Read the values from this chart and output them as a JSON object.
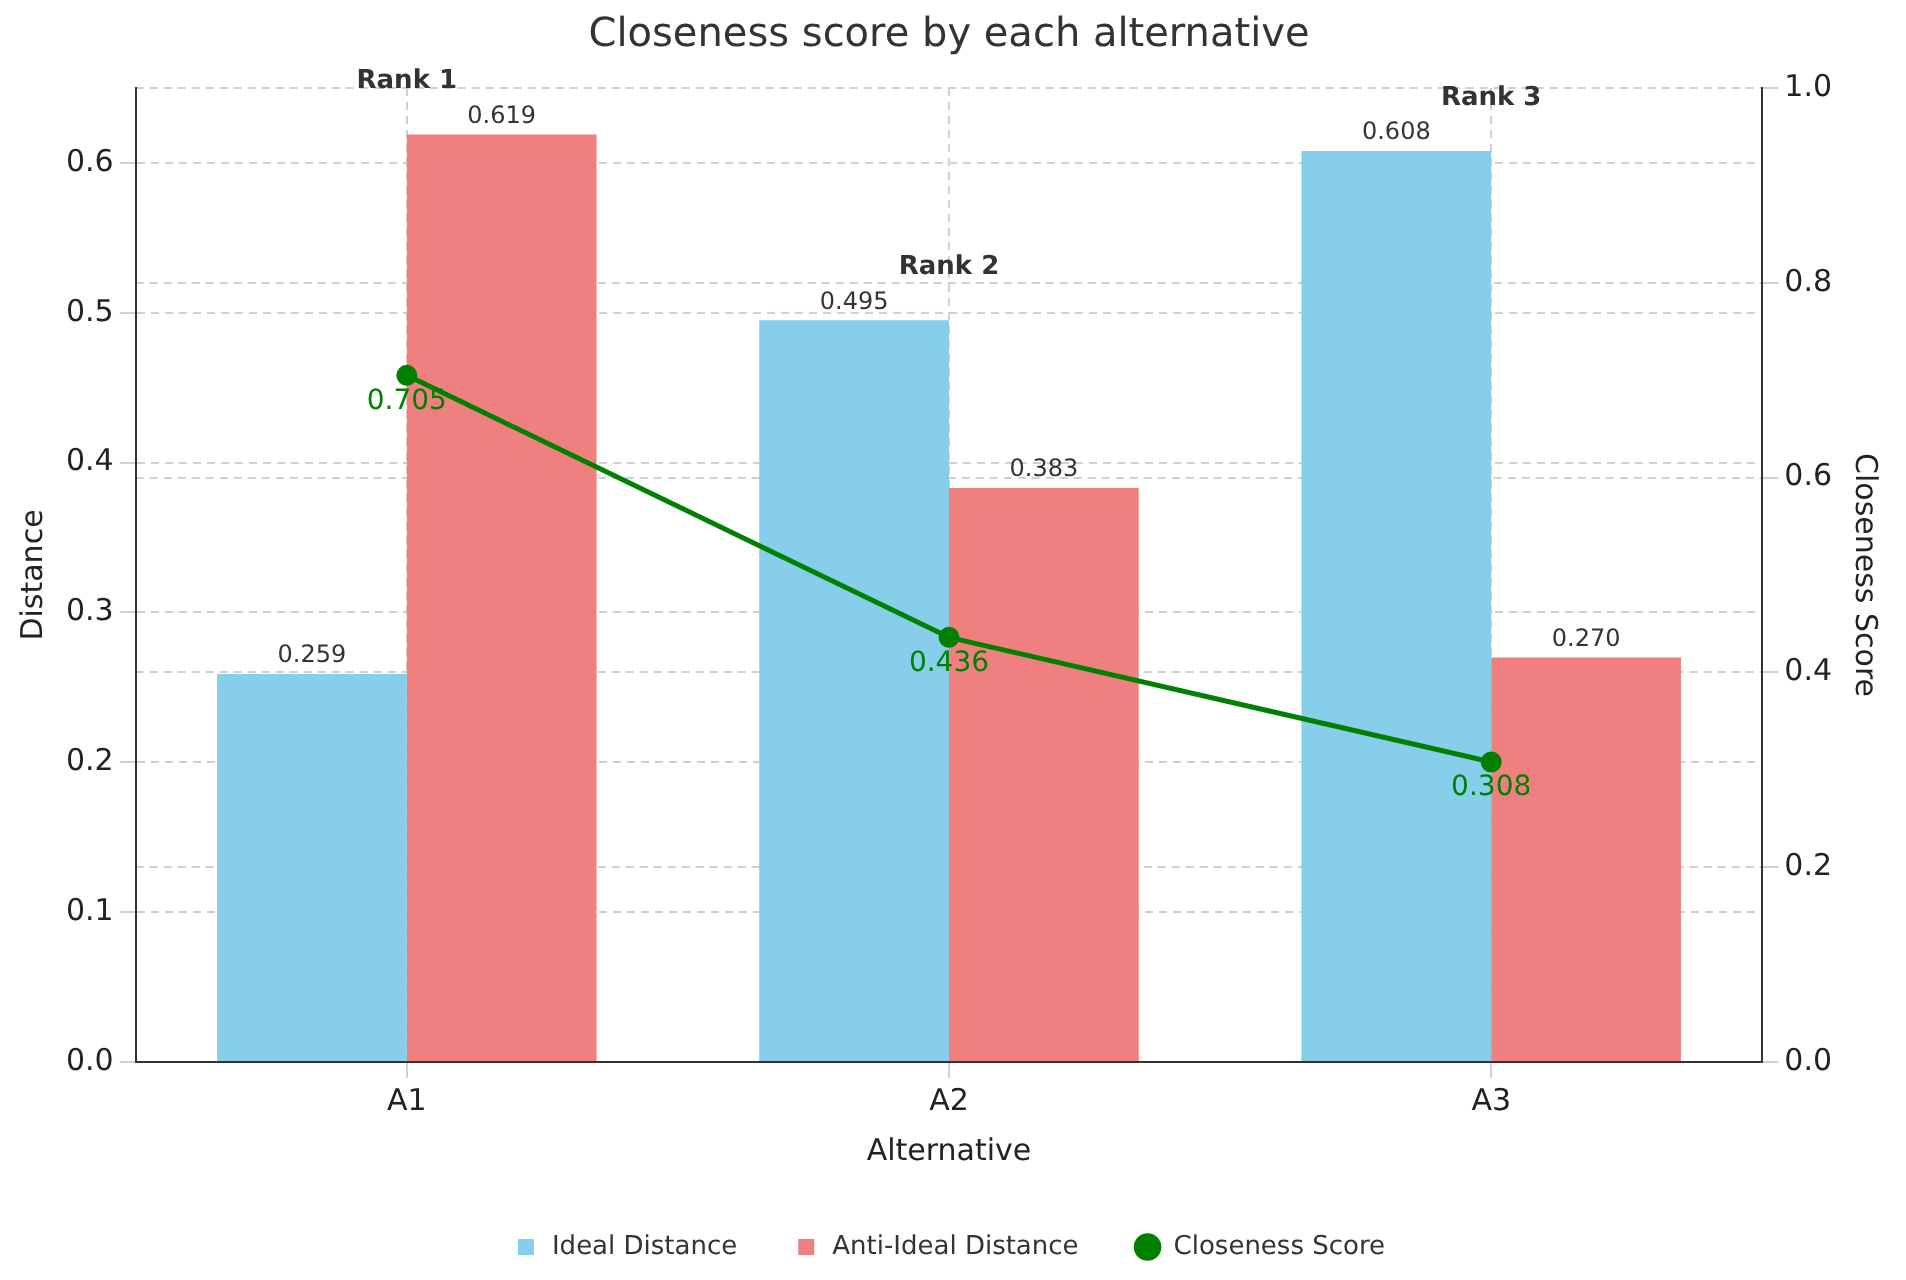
{
  "chart_data": {
    "type": "bar",
    "title": "Closeness score by each alternative",
    "xlabel": "Alternative",
    "ylabel": "Distance",
    "y2label": "Closeness Score",
    "categories": [
      "A1",
      "A2",
      "A3"
    ],
    "series": [
      {
        "name": "Ideal Distance",
        "color": "#87ceeb",
        "values": [
          0.259,
          0.495,
          0.608
        ],
        "value_labels": [
          "0.259",
          "0.495",
          "0.608"
        ]
      },
      {
        "name": "Anti-Ideal Distance",
        "color": "#f08080",
        "values": [
          0.619,
          0.383,
          0.27
        ],
        "value_labels": [
          "0.619",
          "0.383",
          "0.270"
        ]
      },
      {
        "name": "Closeness Score",
        "type": "line",
        "axis": "y2",
        "color": "#008000",
        "values": [
          0.705,
          0.436,
          0.308
        ],
        "value_labels": [
          "0.705",
          "0.436",
          "0.308"
        ]
      }
    ],
    "ylim": [
      0,
      0.65
    ],
    "yticks": [
      {
        "value": 0,
        "label": "0.0"
      },
      0.1,
      0.2,
      0.3,
      0.4,
      0.5,
      0.6
    ],
    "y2lim": [
      0,
      1
    ],
    "y2ticks": [
      {
        "value": 0,
        "label": "0.0"
      },
      0.2,
      0.4,
      0.6,
      0.8,
      {
        "value": 1,
        "label": "1.0"
      }
    ],
    "annotations": [
      "Rank 1",
      "Rank 2",
      "Rank 3"
    ],
    "grid": true,
    "legend": "bottom",
    "marker": "circle",
    "line_style": "solid"
  }
}
